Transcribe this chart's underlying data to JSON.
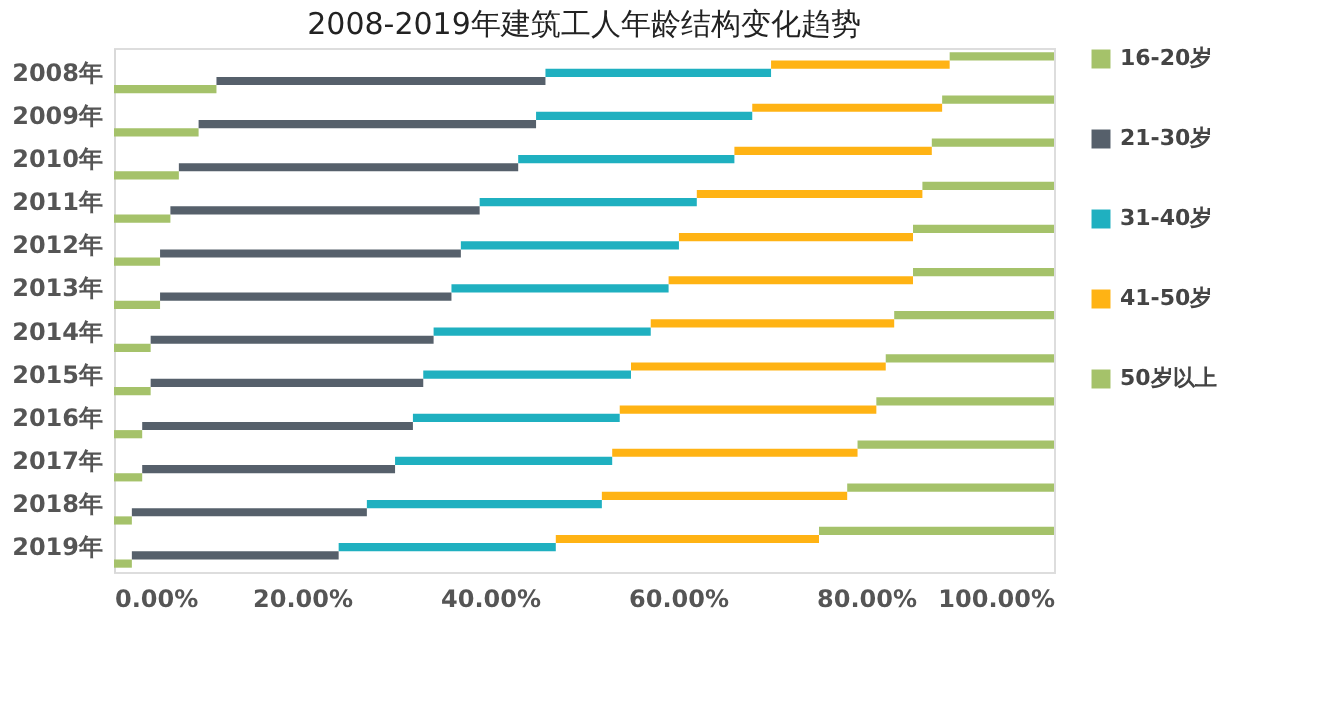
{
  "chart_data": {
    "type": "bar",
    "orientation": "horizontal",
    "stacked": true,
    "title": "2008-2019年建筑工人年龄结构变化趋势",
    "categories": [
      "2008年",
      "2009年",
      "2010年",
      "2011年",
      "2012年",
      "2013年",
      "2014年",
      "2015年",
      "2016年",
      "2017年",
      "2018年",
      "2019年"
    ],
    "series": [
      {
        "name": "16-20岁",
        "color": "#a5c26a",
        "values": [
          10.9,
          9.0,
          6.9,
          6.0,
          4.9,
          4.9,
          3.9,
          3.9,
          3.0,
          3.0,
          1.9,
          1.9
        ]
      },
      {
        "name": "21-30岁",
        "color": "#56606b",
        "values": [
          35.0,
          35.9,
          36.1,
          32.9,
          32.0,
          31.0,
          30.1,
          29.0,
          28.8,
          26.9,
          25.0,
          22.0
        ]
      },
      {
        "name": "31-40岁",
        "color": "#1fb0c0",
        "values": [
          24.0,
          23.0,
          23.0,
          23.1,
          23.2,
          23.1,
          23.1,
          22.1,
          22.0,
          23.1,
          25.0,
          23.1
        ]
      },
      {
        "name": "41-50岁",
        "color": "#ffb314",
        "values": [
          19.0,
          20.2,
          21.0,
          24.0,
          24.9,
          26.0,
          25.9,
          27.1,
          27.3,
          26.1,
          26.1,
          28.0
        ]
      },
      {
        "name": "50岁以上",
        "color": "#a5c26a",
        "values": [
          11.1,
          11.9,
          13.0,
          14.0,
          15.0,
          15.0,
          17.0,
          17.9,
          18.9,
          20.9,
          22.0,
          25.0
        ]
      }
    ],
    "xlim": [
      0,
      100
    ],
    "xticks": [
      {
        "value": 0,
        "label": "0.00%"
      },
      {
        "value": 20,
        "label": "20.00%"
      },
      {
        "value": 40,
        "label": "40.00%"
      },
      {
        "value": 60,
        "label": "60.00%"
      },
      {
        "value": 80,
        "label": "80.00%"
      },
      {
        "value": 100,
        "label": "100.00%"
      }
    ],
    "grid": false,
    "legend": "right"
  }
}
